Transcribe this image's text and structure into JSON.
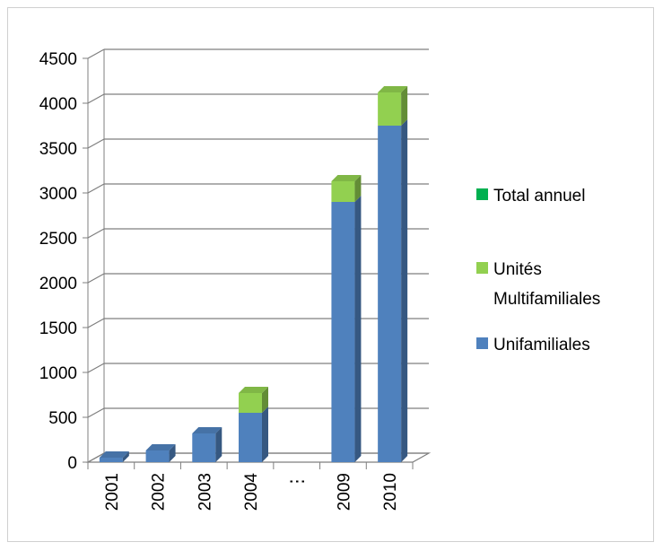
{
  "chart_data": {
    "type": "bar",
    "stacked": true,
    "three_d": true,
    "categories": [
      "2001",
      "2002",
      "2003",
      "2004",
      "⋮",
      "2009",
      "2010"
    ],
    "series": [
      {
        "name": "Unifamiliales",
        "color": "#4f81bd",
        "values": [
          50,
          130,
          320,
          550,
          0,
          2900,
          3750
        ]
      },
      {
        "name": "Unités Multifamiliales",
        "color": "#92d050",
        "values": [
          0,
          0,
          0,
          220,
          0,
          230,
          370
        ]
      },
      {
        "name": "Total annuel",
        "color": "#00b050",
        "values": [
          0,
          0,
          0,
          0,
          0,
          0,
          0
        ]
      }
    ],
    "y_ticks": [
      "0",
      "500",
      "1000",
      "1500",
      "2000",
      "2500",
      "3000",
      "3500",
      "4000",
      "4500"
    ],
    "ylim": [
      0,
      4500
    ],
    "grid": true,
    "legend_position": "right",
    "legend": [
      {
        "lines": [
          "Total annuel"
        ],
        "color": "#00b050"
      },
      {
        "lines": [
          "Unités",
          "Multifamiliales"
        ],
        "color": "#92d050"
      },
      {
        "lines": [
          "Unifamiliales"
        ],
        "color": "#4f81bd"
      }
    ]
  }
}
